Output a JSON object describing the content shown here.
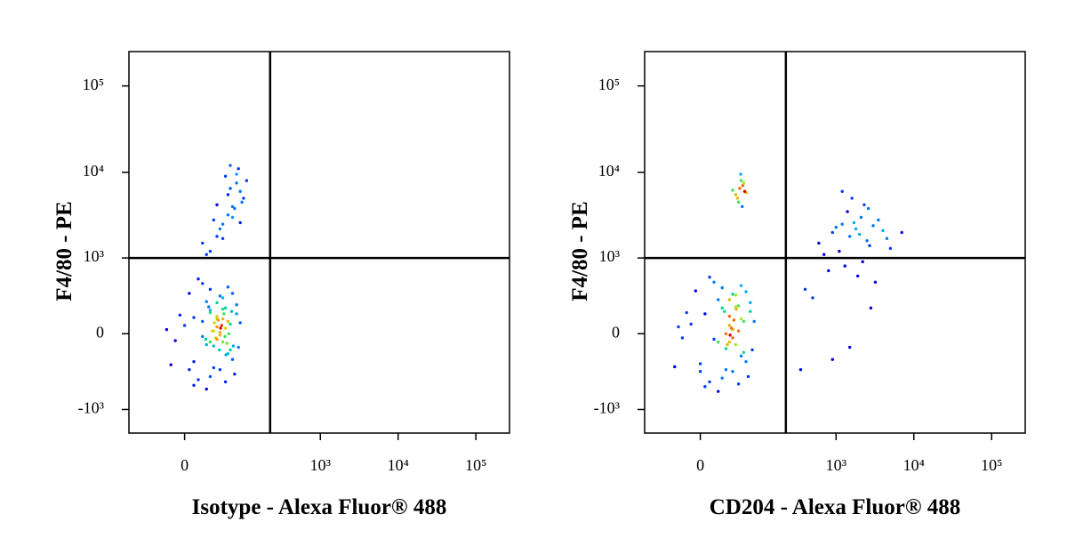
{
  "chart_data": [
    {
      "type": "scatter",
      "x_label": "Isotype - Alexa Fluor® 488",
      "y_label": "F4/80 - PE",
      "scale": "biexponential",
      "xlim": [
        -90,
        270000
      ],
      "ylim": [
        -1900,
        250000
      ],
      "xticks": [
        0,
        {
          "value": 1000,
          "label": "10³"
        },
        {
          "value": 10000,
          "label": "10⁴"
        },
        {
          "value": 100000,
          "label": "10⁵"
        }
      ],
      "yticks": [
        {
          "value": -1000,
          "label": "-10³"
        },
        0,
        {
          "value": 1000,
          "label": "10³"
        },
        {
          "value": 10000,
          "label": "10⁴"
        },
        {
          "value": 100000,
          "label": "10⁵"
        }
      ],
      "quadrant_x": 225,
      "quadrant_y": 1000,
      "x": [
        10,
        25,
        40,
        55,
        70,
        5,
        -10,
        30,
        45,
        60,
        80,
        15,
        35,
        50,
        65,
        20,
        0,
        -15,
        40,
        55,
        75,
        90,
        10,
        30,
        45,
        60,
        25,
        50,
        -5,
        35,
        70,
        85,
        15,
        40,
        55,
        20,
        65,
        30,
        45,
        10,
        50,
        -20,
        35,
        60,
        25,
        40,
        80,
        5,
        45,
        30,
        30,
        50,
        70,
        90,
        40,
        60,
        80,
        100,
        20,
        55,
        75,
        45,
        65,
        85,
        35,
        95,
        110,
        25,
        60,
        70,
        50,
        80,
        40,
        90,
        65,
        42,
        48,
        38,
        52,
        33,
        58,
        28,
        62,
        44,
        36,
        46,
        54,
        40,
        50,
        30,
        56,
        20,
        24,
        68,
        72
      ],
      "values": [
        120,
        -80,
        250,
        40,
        -200,
        350,
        -50,
        180,
        -300,
        90,
        150,
        -420,
        20,
        300,
        -120,
        480,
        60,
        -250,
        -40,
        200,
        -350,
        80,
        -500,
        400,
        10,
        -150,
        260,
        -60,
        140,
        -280,
        350,
        -100,
        550,
        110,
        -450,
        -20,
        70,
        -380,
        320,
        -220,
        190,
        30,
        -90,
        430,
        -560,
        50,
        230,
        -300,
        -10,
        160,
        1200,
        2500,
        4000,
        6000,
        1800,
        3200,
        7500,
        5000,
        1500,
        9000,
        3800,
        2200,
        6500,
        11000,
        2800,
        4500,
        8000,
        1100,
        5500,
        3000,
        1700,
        9500,
        4200,
        2600,
        12000,
        100,
        60,
        -30,
        150,
        20,
        -70,
        210,
        0,
        -120,
        80,
        40,
        -20,
        130,
        110,
        -60,
        -160,
        90,
        -40,
        170,
        -90
      ]
    },
    {
      "type": "scatter",
      "x_label": "CD204 - Alexa Fluor® 488",
      "y_label": "F4/80 - PE",
      "scale": "biexponential",
      "xlim": [
        -90,
        270000
      ],
      "ylim": [
        -1900,
        250000
      ],
      "xticks": [
        0,
        {
          "value": 1000,
          "label": "10³"
        },
        {
          "value": 10000,
          "label": "10⁴"
        },
        {
          "value": 100000,
          "label": "10⁵"
        }
      ],
      "yticks": [
        {
          "value": -1000,
          "label": "-10³"
        },
        0,
        {
          "value": 1000,
          "label": "10³"
        },
        {
          "value": 10000,
          "label": "10⁴"
        },
        {
          "value": 100000,
          "label": "10⁵"
        }
      ],
      "quadrant_x": 225,
      "quadrant_y": 1000,
      "x": [
        5,
        20,
        35,
        50,
        65,
        -5,
        -20,
        25,
        40,
        55,
        75,
        10,
        30,
        45,
        60,
        15,
        -10,
        -30,
        35,
        50,
        70,
        85,
        5,
        25,
        40,
        55,
        20,
        45,
        -15,
        30,
        65,
        80,
        10,
        35,
        50,
        15,
        60,
        25,
        40,
        0,
        45,
        -25,
        30,
        55,
        20,
        35,
        75,
        0,
        40,
        28,
        42,
        38,
        32,
        46,
        36,
        45,
        52,
        58,
        62,
        48,
        55,
        50,
        60,
        40,
        66,
        54,
        57,
        600,
        900,
        1200,
        1500,
        1800,
        2100,
        2500,
        3000,
        3500,
        4000,
        800,
        1100,
        1400,
        1700,
        2000,
        2300,
        2700,
        1600,
        1900,
        2200,
        500,
        700,
        1000,
        1300,
        2600,
        3200,
        5000,
        7000,
        400,
        350,
        900,
        1500,
        2800,
        4500,
        1200
      ],
      "values": [
        150,
        -60,
        280,
        20,
        -220,
        380,
        -30,
        200,
        -320,
        110,
        170,
        -450,
        0,
        330,
        -140,
        500,
        70,
        -270,
        -60,
        220,
        -380,
        90,
        -520,
        420,
        30,
        -170,
        280,
        -80,
        160,
        -300,
        370,
        -120,
        580,
        130,
        -480,
        -40,
        90,
        -400,
        340,
        -240,
        210,
        50,
        -110,
        450,
        -600,
        60,
        250,
        -320,
        -30,
        170,
        100,
        40,
        -80,
        190,
        -10,
        5500,
        6500,
        7000,
        6000,
        5000,
        8000,
        4500,
        7500,
        6200,
        5800,
        9500,
        4000,
        1500,
        2000,
        2500,
        1800,
        2200,
        3000,
        1600,
        2400,
        2800,
        2100,
        700,
        1200,
        3500,
        2600,
        1900,
        4200,
        1400,
        5000,
        600,
        900,
        300,
        1100,
        2300,
        800,
        3800,
        500,
        1300,
        2000,
        400,
        -300,
        -200,
        -100,
        200,
        1700,
        6000
      ]
    }
  ]
}
